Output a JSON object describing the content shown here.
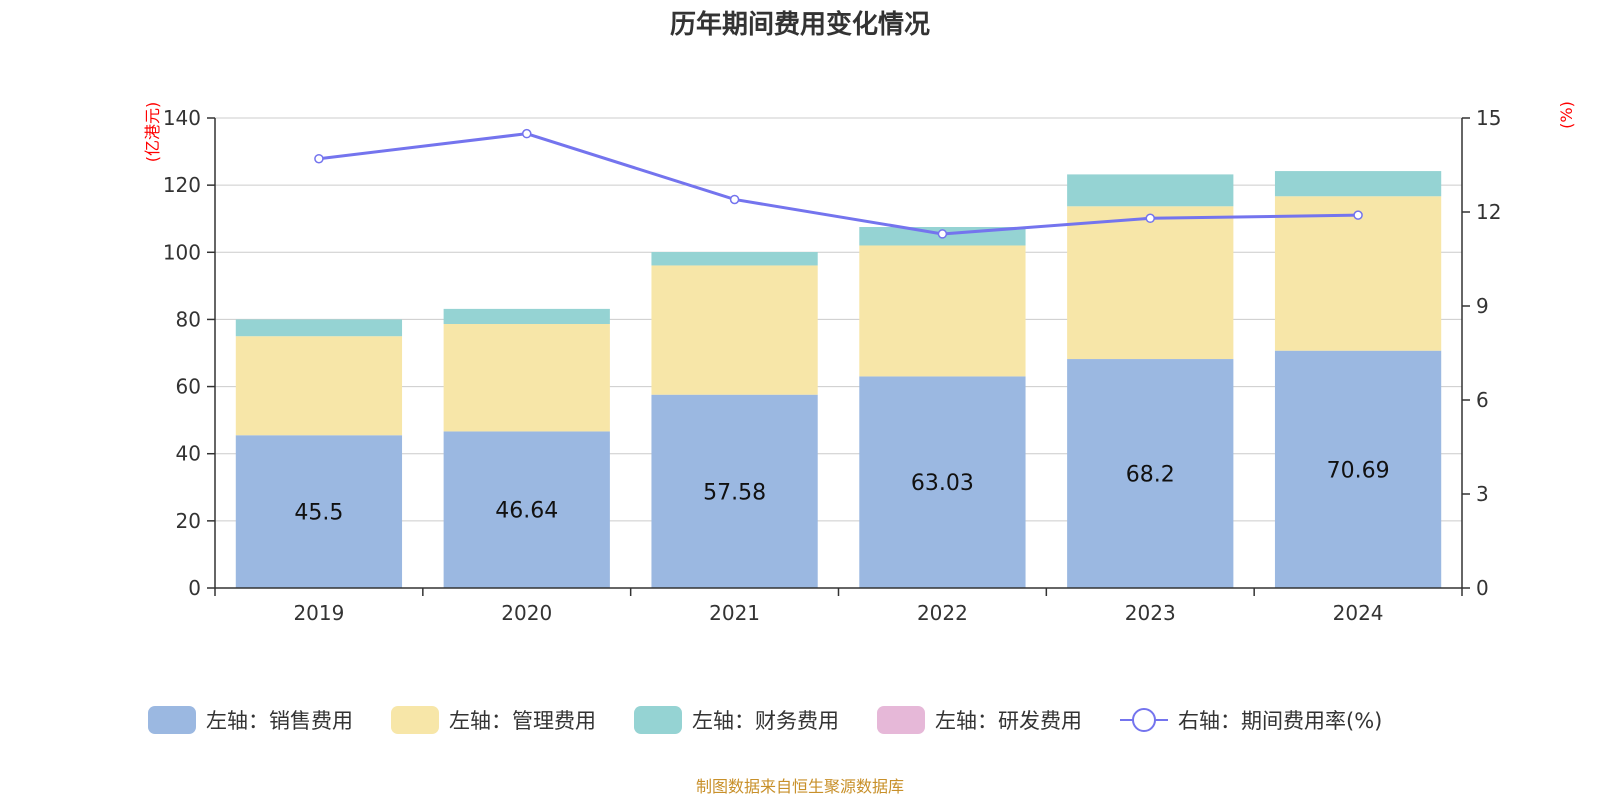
{
  "title": "历年期间费用变化情况",
  "left_unit": "(亿港元)",
  "right_unit": "(%)",
  "source": "制图数据来自恒生聚源数据库",
  "colors": {
    "sales": "#9bb8e1",
    "admin": "#f7e6a8",
    "finance": "#95d3d3",
    "rnd": "#e6b8d8",
    "rate": "#7474ee",
    "grid": "#cccccc",
    "axis": "#333333"
  },
  "chart_data": {
    "type": "bar",
    "title": "历年期间费用变化情况",
    "categories": [
      "2019",
      "2020",
      "2021",
      "2022",
      "2023",
      "2024"
    ],
    "ylim": [
      0,
      140
    ],
    "yticks": [
      0,
      20,
      40,
      60,
      80,
      100,
      120,
      140
    ],
    "y2lim": [
      0,
      15
    ],
    "y2ticks": [
      0,
      3,
      6,
      9,
      12,
      15
    ],
    "stacked": true,
    "series": [
      {
        "name": "左轴：销售费用",
        "key": "sales",
        "axis": "left",
        "values": [
          45.5,
          46.64,
          57.58,
          63.03,
          68.2,
          70.69
        ],
        "labels": [
          "45.5",
          "46.64",
          "57.58",
          "63.03",
          "68.2",
          "70.69"
        ]
      },
      {
        "name": "左轴：管理费用",
        "key": "admin",
        "axis": "left",
        "values": [
          29.5,
          32.0,
          38.5,
          39.0,
          45.5,
          46.0
        ]
      },
      {
        "name": "左轴：财务费用",
        "key": "finance",
        "axis": "left",
        "values": [
          5.0,
          4.5,
          4.0,
          5.5,
          9.5,
          7.5
        ]
      },
      {
        "name": "左轴：研发费用",
        "key": "rnd",
        "axis": "left",
        "values": [
          0,
          0,
          0,
          0,
          0,
          0
        ]
      },
      {
        "name": "右轴：期间费用率(%)",
        "key": "rate",
        "axis": "right",
        "type": "line",
        "values": [
          13.7,
          14.5,
          12.4,
          11.3,
          11.8,
          11.9
        ]
      }
    ]
  }
}
